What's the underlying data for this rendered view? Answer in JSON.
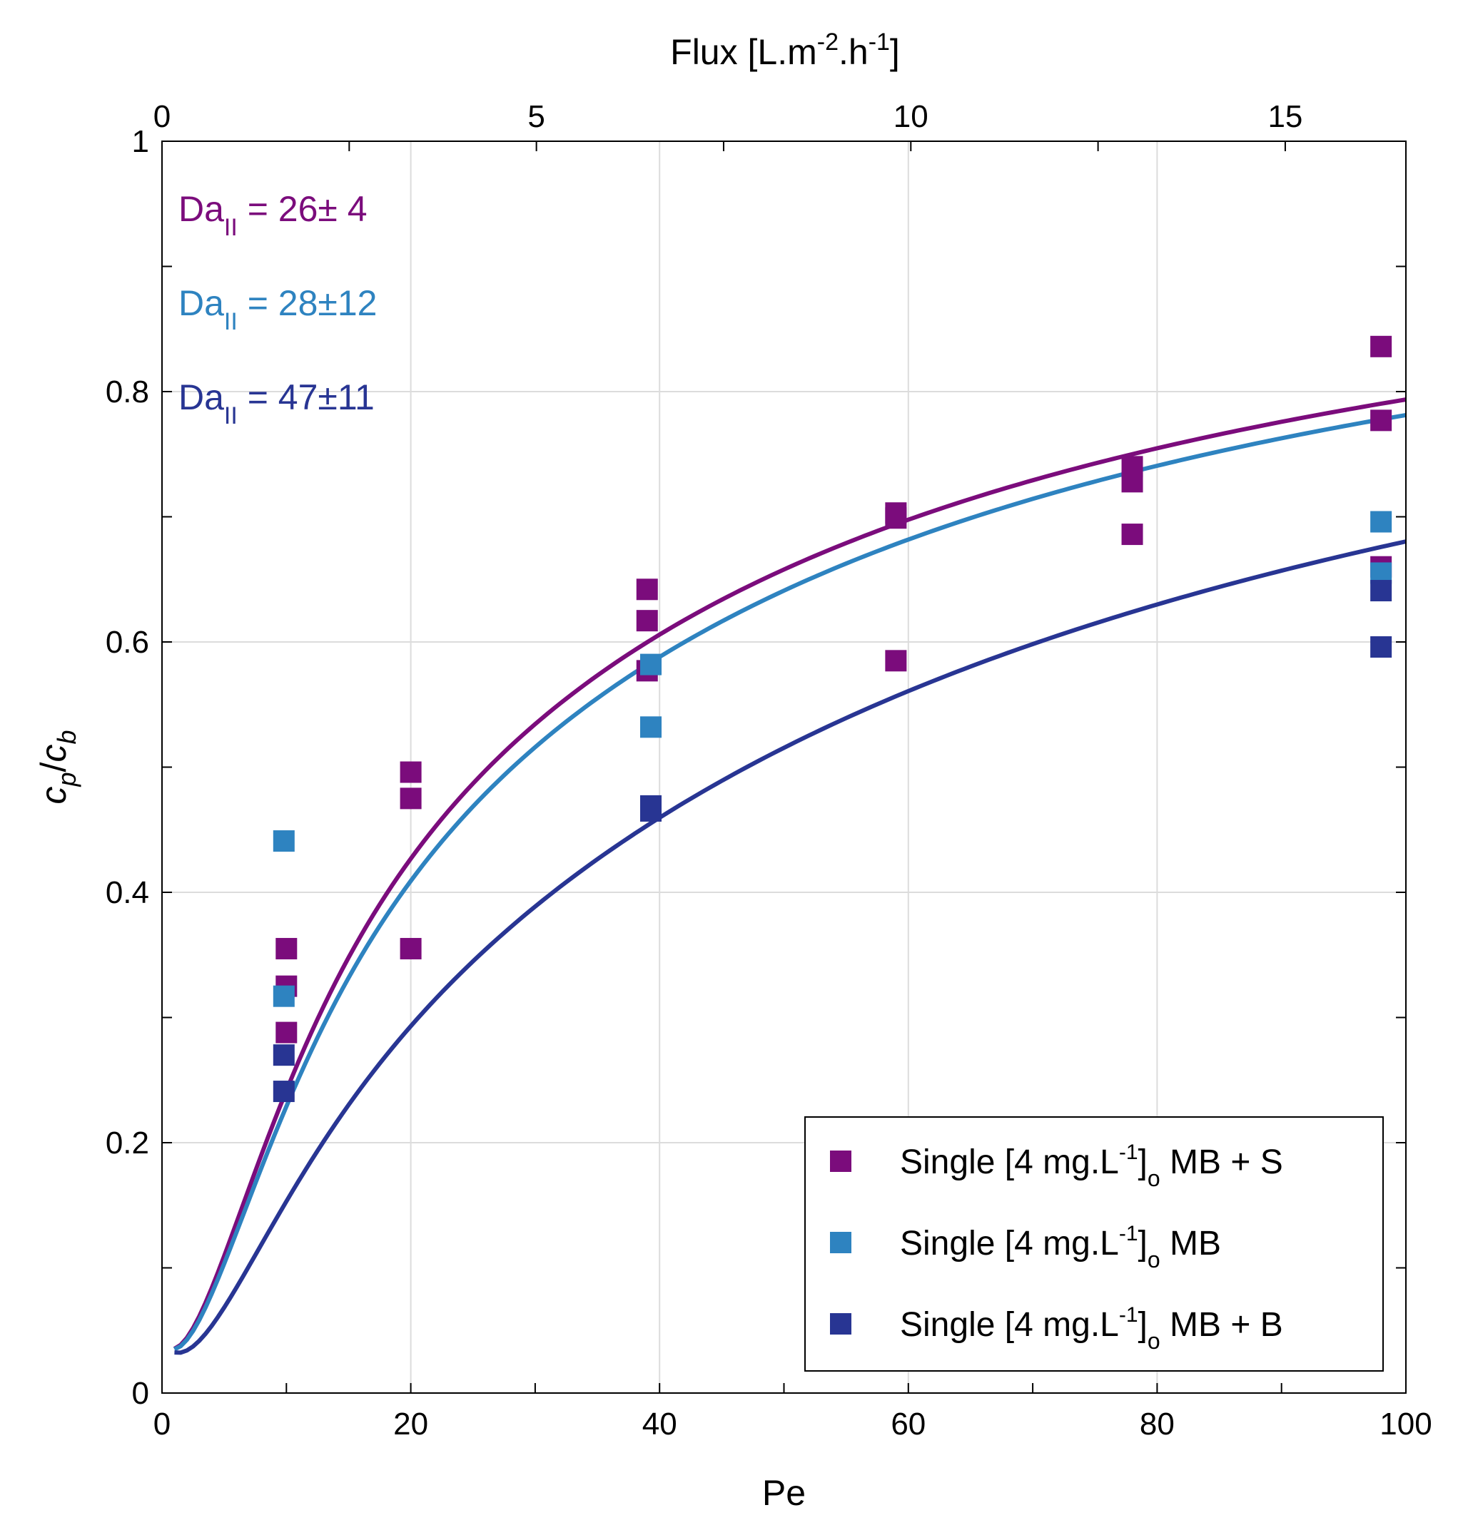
{
  "chart_data": {
    "type": "scatter",
    "xlabel": "Pe",
    "ylabel_parts": {
      "c": "c",
      "p": "p",
      "slash": "/",
      "b": "b"
    },
    "top_xlabel_parts": {
      "main": "Flux [L.m",
      "sup1": "-2",
      "mid": ".h",
      "sup2": "-1",
      "end": "]"
    },
    "xlim": [
      0,
      100
    ],
    "ylim": [
      0,
      1
    ],
    "x_ticks": [
      0,
      20,
      40,
      60,
      80,
      100
    ],
    "x_tick_labels": [
      "0",
      "20",
      "40",
      "60",
      "80",
      "100"
    ],
    "y_ticks": [
      0,
      0.2,
      0.4,
      0.6,
      0.8,
      1
    ],
    "y_tick_labels": [
      "0",
      "0.2",
      "0.4",
      "0.6",
      "0.8",
      "1"
    ],
    "top_ticks": [
      0,
      5,
      10,
      15
    ],
    "top_tick_labels": [
      "0",
      "5",
      "10",
      "15"
    ],
    "top_axis_scale_pe_per_flux": 6.02,
    "grid": true,
    "legend_position": "bottom-right",
    "series": [
      {
        "name": "Single [4 mg.L-1]o MB + S",
        "label_parts": {
          "pre": "Single [4 mg.L",
          "sup": "-1",
          "close": "]",
          "sub": "o",
          "post": " MB + S"
        },
        "color": "#7b0c7c",
        "da": 26,
        "points": [
          [
            10,
            0.355
          ],
          [
            10,
            0.325
          ],
          [
            10,
            0.288
          ],
          [
            20,
            0.496
          ],
          [
            20,
            0.475
          ],
          [
            20,
            0.355
          ],
          [
            39,
            0.642
          ],
          [
            39,
            0.617
          ],
          [
            39,
            0.577
          ],
          [
            59,
            0.703
          ],
          [
            59,
            0.699
          ],
          [
            59,
            0.585
          ],
          [
            78,
            0.74
          ],
          [
            78,
            0.728
          ],
          [
            78,
            0.686
          ],
          [
            98,
            0.836
          ],
          [
            98,
            0.777
          ],
          [
            98,
            0.66
          ]
        ]
      },
      {
        "name": "Single [4 mg.L-1]o MB",
        "label_parts": {
          "pre": "Single [4 mg.L",
          "sup": "-1",
          "close": "]",
          "sub": "o",
          "post": " MB"
        },
        "color": "#2e83c0",
        "da": 28,
        "points": [
          [
            9.8,
            0.441
          ],
          [
            9.8,
            0.317
          ],
          [
            39.3,
            0.582
          ],
          [
            39.3,
            0.532
          ],
          [
            98,
            0.696
          ],
          [
            98,
            0.655
          ]
        ]
      },
      {
        "name": "Single [4 mg.L-1]o MB + B",
        "label_parts": {
          "pre": "Single [4 mg.L",
          "sup": "-1",
          "close": "]",
          "sub": "o",
          "post": " MB + B"
        },
        "color": "#283593",
        "da": 47,
        "points": [
          [
            9.8,
            0.27
          ],
          [
            9.8,
            0.241
          ],
          [
            39.3,
            0.469
          ],
          [
            39.3,
            0.465
          ],
          [
            98,
            0.641
          ],
          [
            98,
            0.596
          ]
        ]
      }
    ],
    "annotations": [
      {
        "main": "Da",
        "sub": "II",
        "value": " = 26± 4",
        "color": "#7b0c7c"
      },
      {
        "main": "Da",
        "sub": "II",
        "value": " = 28±12",
        "color": "#2e83c0"
      },
      {
        "main": "Da",
        "sub": "II",
        "value": " = 47±11",
        "color": "#283593"
      }
    ]
  }
}
